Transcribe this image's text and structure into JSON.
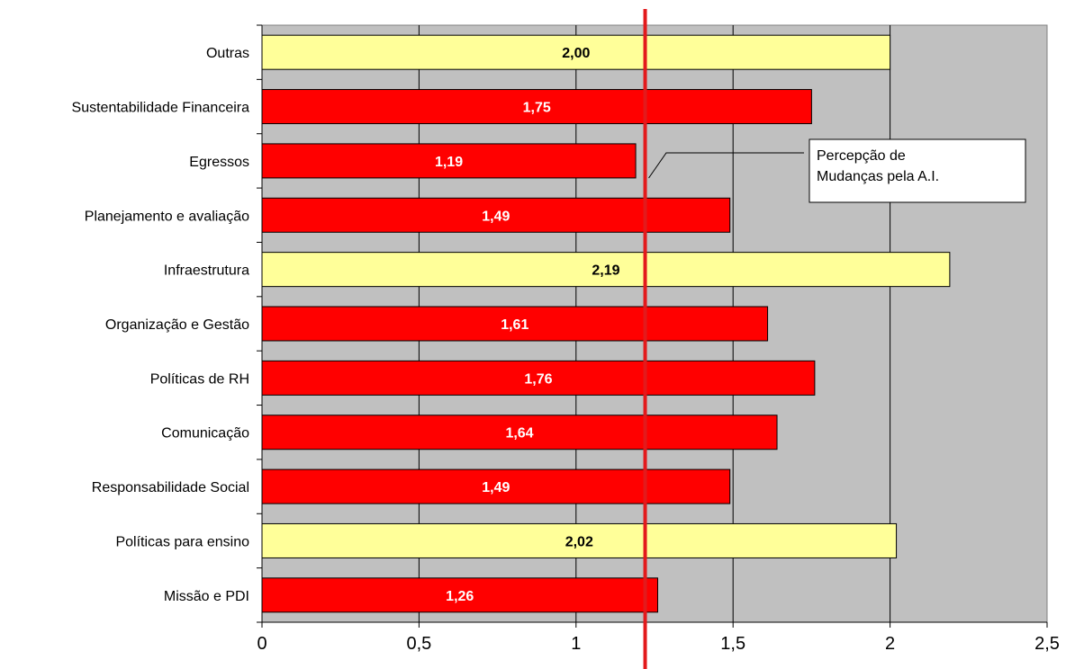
{
  "chart_data": {
    "type": "bar",
    "orientation": "horizontal",
    "categories": [
      "Outras",
      "Sustentabilidade Financeira",
      "Egressos",
      "Planejamento e avaliação",
      "Infraestrutura",
      "Organização e Gestão",
      "Políticas de RH",
      "Comunicação",
      "Responsabilidade Social",
      "Políticas para ensino",
      "Missão e PDI"
    ],
    "values": [
      2.0,
      1.75,
      1.19,
      1.49,
      2.19,
      1.61,
      1.76,
      1.64,
      1.49,
      2.02,
      1.26
    ],
    "value_labels": [
      "2,00",
      "1,75",
      "1,19",
      "1,49",
      "2,19",
      "1,61",
      "1,76",
      "1,64",
      "1,49",
      "2,02",
      "1,26"
    ],
    "bar_colors": [
      "#FFFF99",
      "#FF0000",
      "#FF0000",
      "#FF0000",
      "#FFFF99",
      "#FF0000",
      "#FF0000",
      "#FF0000",
      "#FF0000",
      "#FFFF99",
      "#FF0000"
    ],
    "label_colors": [
      "#000000",
      "#FFFFFF",
      "#FFFFFF",
      "#FFFFFF",
      "#000000",
      "#FFFFFF",
      "#FFFFFF",
      "#FFFFFF",
      "#FFFFFF",
      "#000000",
      "#FFFFFF"
    ],
    "xlim": [
      0,
      2.5
    ],
    "x_ticks": [
      0,
      0.5,
      1,
      1.5,
      2,
      2.5
    ],
    "x_tick_labels": [
      "0",
      "0,5",
      "1",
      "1,5",
      "2",
      "2,5"
    ],
    "reference_line": {
      "value": 1.22,
      "color": "#E31A1C",
      "annotation": [
        "Percepção de",
        "Mudanças pela A.I."
      ]
    },
    "plot_background": "#C0C0C0",
    "grid": true,
    "title": "",
    "xlabel": "",
    "ylabel": ""
  }
}
